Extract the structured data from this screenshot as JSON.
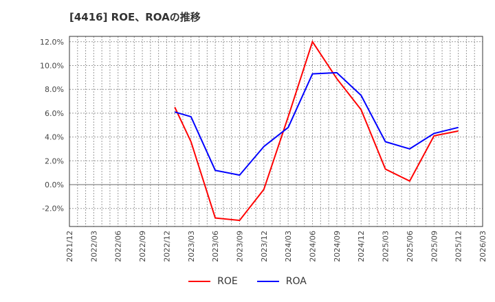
{
  "header": {
    "title": "[4416]  ROE、ROAの推移"
  },
  "colors": {
    "roe": "#ff0000",
    "roa": "#0000ff",
    "grid": "#999999",
    "axis": "#333333"
  },
  "legend": {
    "items": [
      {
        "label": "ROE",
        "color": "#ff0000"
      },
      {
        "label": "ROA",
        "color": "#0000ff"
      }
    ]
  },
  "chart_data": {
    "type": "line",
    "title": "[4416]  ROE、ROAの推移",
    "xlabel": "",
    "ylabel": "",
    "ylim": [
      -3.5,
      12.5
    ],
    "yticks": [
      "12.0%",
      "10.0%",
      "8.0%",
      "6.0%",
      "4.0%",
      "2.0%",
      "0.0%",
      "-2.0%"
    ],
    "ytick_values": [
      12,
      10,
      8,
      6,
      4,
      2,
      0,
      -2
    ],
    "xticks": [
      "2021/12",
      "2022/03",
      "2022/06",
      "2022/09",
      "2022/12",
      "2023/03",
      "2023/06",
      "2023/09",
      "2023/12",
      "2024/03",
      "2024/06",
      "2024/09",
      "2024/12",
      "2025/03",
      "2025/06",
      "2025/09",
      "2025/12",
      "2026/03"
    ],
    "grid": true,
    "legend_position": "bottom",
    "x": [
      "2023/01",
      "2023/03",
      "2023/06",
      "2023/09",
      "2023/12",
      "2024/03",
      "2024/06",
      "2024/09",
      "2024/12",
      "2025/03",
      "2025/06",
      "2025/09",
      "2025/12"
    ],
    "x_month_index": [
      13,
      15,
      18,
      21,
      24,
      27,
      30,
      33,
      36,
      39,
      42,
      45,
      48
    ],
    "series": [
      {
        "name": "ROE",
        "color": "#ff0000",
        "values": [
          6.5,
          3.6,
          -2.8,
          -3.0,
          -0.4,
          5.7,
          12.0,
          8.9,
          6.3,
          1.3,
          0.3,
          4.1,
          4.5
        ]
      },
      {
        "name": "ROA",
        "color": "#0000ff",
        "values": [
          6.1,
          5.7,
          1.2,
          0.8,
          3.2,
          4.8,
          9.3,
          9.4,
          7.5,
          3.6,
          3.0,
          4.3,
          4.8
        ]
      }
    ]
  }
}
